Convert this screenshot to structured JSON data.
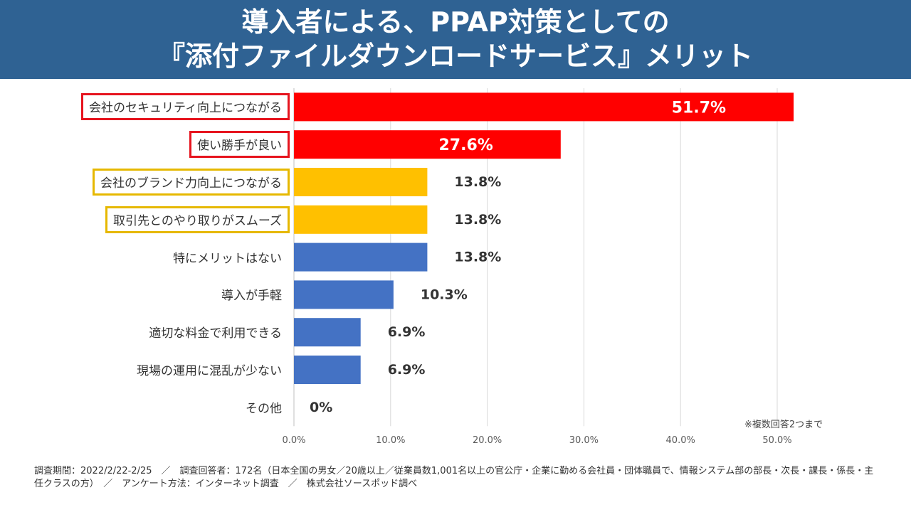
{
  "header": {
    "title_line1": "導入者による、PPAP対策としての",
    "title_line2": "『添付ファイルダウンロードサービス』メリット"
  },
  "chart_data": {
    "type": "bar",
    "orientation": "horizontal",
    "categories": [
      "会社のセキュリティ向上につながる",
      "使い勝手が良い",
      "会社のブランド力向上につながる",
      "取引先とのやり取りがスムーズ",
      "特にメリットはない",
      "導入が手軽",
      "適切な料金で利用できる",
      "現場の運用に混乱が少ない",
      "その他"
    ],
    "values": [
      51.7,
      27.6,
      13.8,
      13.8,
      13.8,
      10.3,
      6.9,
      6.9,
      0
    ],
    "value_labels": [
      "51.7%",
      "27.6%",
      "13.8%",
      "13.8%",
      "13.8%",
      "10.3%",
      "6.9%",
      "6.9%",
      "0%"
    ],
    "bar_colors": [
      "#ff0000",
      "#ff0000",
      "#ffc000",
      "#ffc000",
      "#4472c4",
      "#4472c4",
      "#4472c4",
      "#4472c4",
      "#4472c4"
    ],
    "label_box": [
      "red",
      "red",
      "gold",
      "gold",
      "none",
      "none",
      "none",
      "none",
      "none"
    ],
    "xlim": [
      0,
      50
    ],
    "x_ticks": [
      "0.0%",
      "10.0%",
      "20.0%",
      "30.0%",
      "40.0%",
      "50.0%"
    ],
    "grid": true
  },
  "note": "※複数回答2つまで",
  "footer": "調査期間：2022/2/22-2/25　／　調査回答者：172名（日本全国の男女／20歳以上／従業員数1,001名以上の官公庁・企業に勤める会社員・団体職員で、情報システム部の部長・次長・課長・係長・主任クラスの方）　／　アンケート方法：インターネット調査　／　株式会社ソースポッド調べ"
}
